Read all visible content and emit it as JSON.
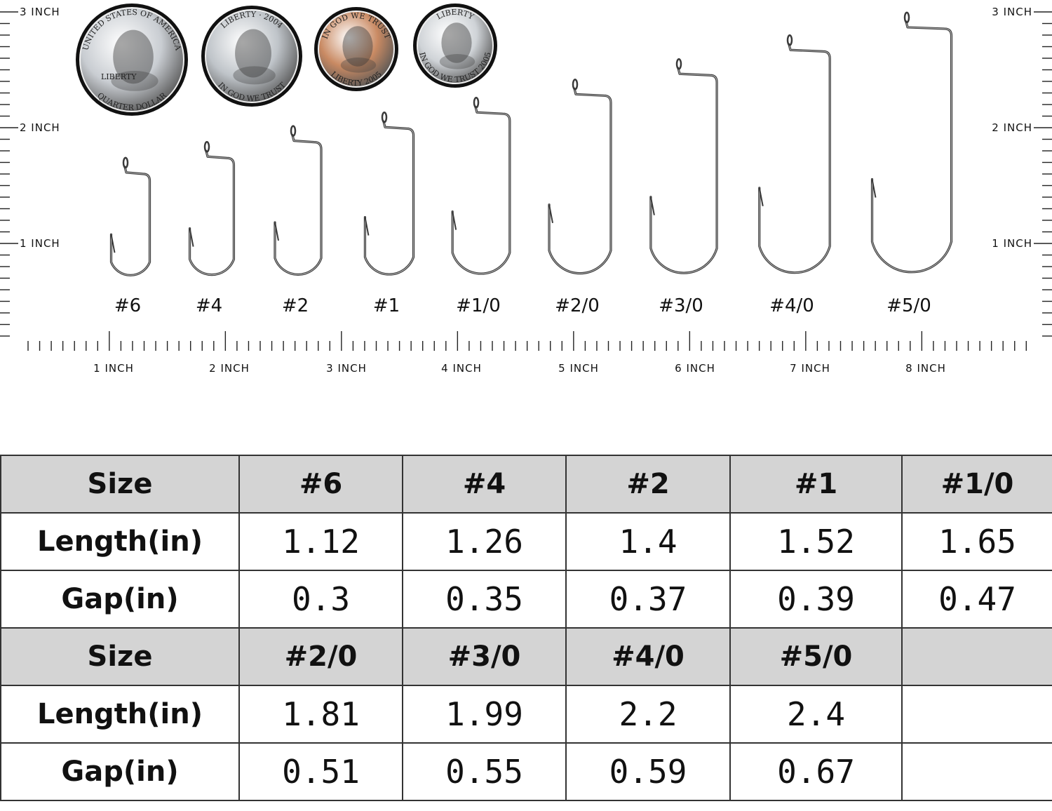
{
  "ruler": {
    "left_labels": [
      "3 INCH",
      "2 INCH",
      "1 INCH"
    ],
    "right_labels": [
      "3 INCH",
      "2 INCH",
      "1 INCH"
    ],
    "bottom_labels": [
      "1 INCH",
      "2 INCH",
      "3 INCH",
      "4 INCH",
      "5 INCH",
      "6 INCH",
      "7 INCH",
      "8 INCH"
    ]
  },
  "coins": [
    {
      "name": "quarter",
      "text_top": "UNITED STATES OF AMERICA",
      "text_bottom": "QUARTER DOLLAR",
      "text_small": "LIBERTY",
      "metal": "#c9cdd2"
    },
    {
      "name": "nickel",
      "text_top": "LIBERTY · 2004",
      "text_bottom": "IN GOD WE TRUST",
      "metal": "#bfc4c9"
    },
    {
      "name": "penny",
      "text_top": "IN GOD WE TRUST",
      "text_bottom": "LIBERTY 2005",
      "metal": "#c98a63"
    },
    {
      "name": "dime",
      "text_top": "LIBERTY",
      "text_bottom": "IN GOD WE TRUST 2005",
      "metal": "#cfd3d7"
    }
  ],
  "hooks": [
    {
      "label": "#6",
      "length": 1.12,
      "gap": 0.3
    },
    {
      "label": "#4",
      "length": 1.26,
      "gap": 0.35
    },
    {
      "label": "#2",
      "length": 1.4,
      "gap": 0.37
    },
    {
      "label": "#1",
      "length": 1.52,
      "gap": 0.39
    },
    {
      "label": "#1/0",
      "length": 1.65,
      "gap": 0.47
    },
    {
      "label": "#2/0",
      "length": 1.81,
      "gap": 0.51
    },
    {
      "label": "#3/0",
      "length": 1.99,
      "gap": 0.55
    },
    {
      "label": "#4/0",
      "length": 2.2,
      "gap": 0.59
    },
    {
      "label": "#5/0",
      "length": 2.4,
      "gap": 0.67
    }
  ],
  "table": {
    "rows": [
      {
        "type": "head",
        "cells": [
          "Size",
          "#6",
          "#4",
          "#2",
          "#1",
          "#1/0"
        ]
      },
      {
        "type": "data",
        "cells": [
          "Length(in)",
          "1.12",
          "1.26",
          "1.4",
          "1.52",
          "1.65"
        ]
      },
      {
        "type": "data",
        "cells": [
          "Gap(in)",
          "0.3",
          "0.35",
          "0.37",
          "0.39",
          "0.47"
        ]
      },
      {
        "type": "head",
        "cells": [
          "Size",
          "#2/0",
          "#3/0",
          "#4/0",
          "#5/0",
          ""
        ]
      },
      {
        "type": "data",
        "cells": [
          "Length(in)",
          "1.81",
          "1.99",
          "2.2",
          "2.4",
          ""
        ]
      },
      {
        "type": "data",
        "cells": [
          "Gap(in)",
          "0.51",
          "0.55",
          "0.59",
          "0.67",
          ""
        ]
      }
    ]
  },
  "colors": {
    "hook": "#3a3a3a",
    "header_bg": "#d4d4d4",
    "grid": "#333333"
  }
}
